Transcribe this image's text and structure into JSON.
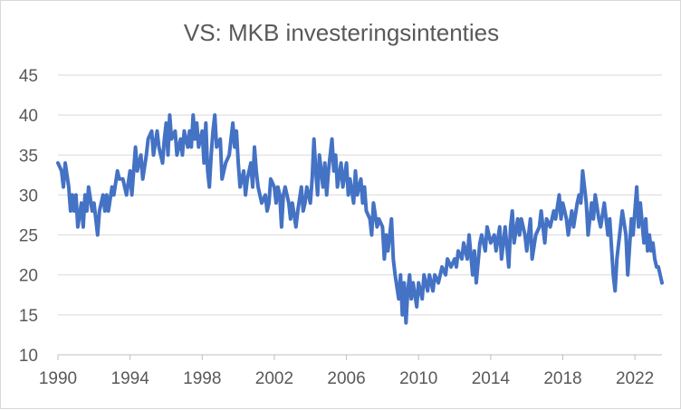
{
  "chart_data": {
    "type": "line",
    "title": "VS: MKB investeringsintenties",
    "xlabel": "",
    "ylabel": "",
    "xlim": [
      1990,
      2023.5
    ],
    "ylim": [
      10,
      45
    ],
    "x_ticks": [
      "1990",
      "1994",
      "1998",
      "2002",
      "2006",
      "2010",
      "2014",
      "2018",
      "2022"
    ],
    "y_ticks": [
      "10",
      "15",
      "20",
      "25",
      "30",
      "35",
      "40",
      "45"
    ],
    "grid": "horizontal",
    "legend": "none",
    "series": [
      {
        "color": "#4472c4",
        "points": [
          [
            1990.0,
            34
          ],
          [
            1990.2,
            33
          ],
          [
            1990.3,
            31
          ],
          [
            1990.4,
            34
          ],
          [
            1990.6,
            31
          ],
          [
            1990.7,
            28
          ],
          [
            1990.8,
            30
          ],
          [
            1990.9,
            28
          ],
          [
            1991.0,
            30
          ],
          [
            1991.1,
            26
          ],
          [
            1991.3,
            29
          ],
          [
            1991.4,
            26
          ],
          [
            1991.5,
            30
          ],
          [
            1991.6,
            28
          ],
          [
            1991.7,
            31
          ],
          [
            1991.9,
            28
          ],
          [
            1992.0,
            29
          ],
          [
            1992.1,
            27
          ],
          [
            1992.2,
            25
          ],
          [
            1992.3,
            28
          ],
          [
            1992.5,
            30
          ],
          [
            1992.6,
            28
          ],
          [
            1992.7,
            30
          ],
          [
            1992.8,
            28
          ],
          [
            1993.0,
            31
          ],
          [
            1993.1,
            30
          ],
          [
            1993.3,
            33
          ],
          [
            1993.4,
            32
          ],
          [
            1993.6,
            32
          ],
          [
            1993.8,
            30
          ],
          [
            1994.0,
            33
          ],
          [
            1994.1,
            30
          ],
          [
            1994.3,
            36
          ],
          [
            1994.4,
            33
          ],
          [
            1994.6,
            35
          ],
          [
            1994.7,
            32
          ],
          [
            1994.9,
            35
          ],
          [
            1995.0,
            37
          ],
          [
            1995.2,
            38
          ],
          [
            1995.3,
            35
          ],
          [
            1995.5,
            38
          ],
          [
            1995.6,
            36
          ],
          [
            1995.8,
            34
          ],
          [
            1995.9,
            37
          ],
          [
            1996.0,
            39
          ],
          [
            1996.1,
            35
          ],
          [
            1996.2,
            40
          ],
          [
            1996.3,
            37
          ],
          [
            1996.5,
            38
          ],
          [
            1996.6,
            35
          ],
          [
            1996.8,
            37
          ],
          [
            1996.9,
            35
          ],
          [
            1997.0,
            38
          ],
          [
            1997.2,
            36
          ],
          [
            1997.3,
            38
          ],
          [
            1997.4,
            36
          ],
          [
            1997.5,
            40
          ],
          [
            1997.6,
            37
          ],
          [
            1997.7,
            39
          ],
          [
            1997.8,
            36
          ],
          [
            1998.0,
            38
          ],
          [
            1998.1,
            34
          ],
          [
            1998.2,
            39
          ],
          [
            1998.3,
            33
          ],
          [
            1998.4,
            31
          ],
          [
            1998.5,
            35
          ],
          [
            1998.6,
            38
          ],
          [
            1998.7,
            40
          ],
          [
            1998.8,
            36
          ],
          [
            1999.0,
            37
          ],
          [
            1999.1,
            32
          ],
          [
            1999.3,
            34
          ],
          [
            1999.5,
            35
          ],
          [
            1999.7,
            39
          ],
          [
            1999.8,
            36
          ],
          [
            1999.9,
            38
          ],
          [
            2000.0,
            34
          ],
          [
            2000.1,
            31
          ],
          [
            2000.3,
            33
          ],
          [
            2000.4,
            30
          ],
          [
            2000.5,
            32
          ],
          [
            2000.7,
            34
          ],
          [
            2000.8,
            31
          ],
          [
            2000.9,
            36
          ],
          [
            2001.0,
            33
          ],
          [
            2001.1,
            31
          ],
          [
            2001.2,
            30
          ],
          [
            2001.3,
            29
          ],
          [
            2001.5,
            30
          ],
          [
            2001.6,
            28
          ],
          [
            2001.7,
            29
          ],
          [
            2001.8,
            32
          ],
          [
            2002.0,
            31
          ],
          [
            2002.1,
            29
          ],
          [
            2002.2,
            31
          ],
          [
            2002.3,
            30
          ],
          [
            2002.4,
            26
          ],
          [
            2002.5,
            30
          ],
          [
            2002.6,
            31
          ],
          [
            2002.8,
            29
          ],
          [
            2002.9,
            27
          ],
          [
            2003.0,
            29
          ],
          [
            2003.2,
            26
          ],
          [
            2003.3,
            28
          ],
          [
            2003.5,
            31
          ],
          [
            2003.6,
            28
          ],
          [
            2003.7,
            29
          ],
          [
            2003.8,
            31
          ],
          [
            2004.0,
            29
          ],
          [
            2004.1,
            32
          ],
          [
            2004.2,
            37
          ],
          [
            2004.3,
            33
          ],
          [
            2004.4,
            30
          ],
          [
            2004.5,
            35
          ],
          [
            2004.7,
            31
          ],
          [
            2004.8,
            34
          ],
          [
            2004.9,
            30
          ],
          [
            2005.0,
            33
          ],
          [
            2005.2,
            37
          ],
          [
            2005.3,
            33
          ],
          [
            2005.4,
            35
          ],
          [
            2005.5,
            31
          ],
          [
            2005.7,
            34
          ],
          [
            2005.8,
            31
          ],
          [
            2006.0,
            34
          ],
          [
            2006.1,
            30
          ],
          [
            2006.2,
            32
          ],
          [
            2006.4,
            29
          ],
          [
            2006.5,
            33
          ],
          [
            2006.6,
            30
          ],
          [
            2006.8,
            32
          ],
          [
            2006.9,
            29
          ],
          [
            2007.0,
            31
          ],
          [
            2007.1,
            28
          ],
          [
            2007.3,
            27
          ],
          [
            2007.4,
            25
          ],
          [
            2007.5,
            29
          ],
          [
            2007.7,
            26
          ],
          [
            2007.8,
            27
          ],
          [
            2008.0,
            26
          ],
          [
            2008.1,
            22
          ],
          [
            2008.2,
            25
          ],
          [
            2008.3,
            23
          ],
          [
            2008.5,
            27
          ],
          [
            2008.6,
            22
          ],
          [
            2008.7,
            20
          ],
          [
            2008.9,
            17
          ],
          [
            2009.0,
            20
          ],
          [
            2009.1,
            15
          ],
          [
            2009.2,
            19
          ],
          [
            2009.3,
            14
          ],
          [
            2009.4,
            18
          ],
          [
            2009.5,
            20
          ],
          [
            2009.6,
            17
          ],
          [
            2009.7,
            19
          ],
          [
            2009.9,
            16
          ],
          [
            2010.0,
            19
          ],
          [
            2010.2,
            17
          ],
          [
            2010.3,
            20
          ],
          [
            2010.5,
            18
          ],
          [
            2010.6,
            20
          ],
          [
            2010.8,
            18
          ],
          [
            2010.9,
            20
          ],
          [
            2011.1,
            19
          ],
          [
            2011.3,
            21
          ],
          [
            2011.5,
            20
          ],
          [
            2011.6,
            22
          ],
          [
            2011.8,
            21
          ],
          [
            2012.0,
            22
          ],
          [
            2012.1,
            21
          ],
          [
            2012.2,
            23
          ],
          [
            2012.4,
            22
          ],
          [
            2012.5,
            24
          ],
          [
            2012.7,
            22
          ],
          [
            2012.8,
            25
          ],
          [
            2013.0,
            20
          ],
          [
            2013.1,
            23
          ],
          [
            2013.2,
            19
          ],
          [
            2013.4,
            24
          ],
          [
            2013.5,
            25
          ],
          [
            2013.7,
            23
          ],
          [
            2013.8,
            26
          ],
          [
            2014.0,
            24
          ],
          [
            2014.2,
            25
          ],
          [
            2014.3,
            23
          ],
          [
            2014.5,
            26
          ],
          [
            2014.6,
            22
          ],
          [
            2014.8,
            26
          ],
          [
            2015.0,
            21
          ],
          [
            2015.1,
            26
          ],
          [
            2015.2,
            28
          ],
          [
            2015.3,
            24
          ],
          [
            2015.5,
            27
          ],
          [
            2015.6,
            25
          ],
          [
            2015.7,
            27
          ],
          [
            2015.9,
            25
          ],
          [
            2016.0,
            23
          ],
          [
            2016.2,
            27
          ],
          [
            2016.3,
            22
          ],
          [
            2016.5,
            25
          ],
          [
            2016.7,
            26
          ],
          [
            2016.8,
            28
          ],
          [
            2016.9,
            26
          ],
          [
            2017.0,
            24
          ],
          [
            2017.1,
            27
          ],
          [
            2017.3,
            26
          ],
          [
            2017.5,
            28
          ],
          [
            2017.6,
            27
          ],
          [
            2017.8,
            30
          ],
          [
            2017.9,
            27
          ],
          [
            2018.0,
            29
          ],
          [
            2018.2,
            27
          ],
          [
            2018.3,
            25
          ],
          [
            2018.5,
            28
          ],
          [
            2018.6,
            26
          ],
          [
            2018.8,
            29
          ],
          [
            2018.9,
            30
          ],
          [
            2019.0,
            29
          ],
          [
            2019.1,
            33
          ],
          [
            2019.3,
            29
          ],
          [
            2019.4,
            25
          ],
          [
            2019.6,
            29
          ],
          [
            2019.7,
            27
          ],
          [
            2019.8,
            30
          ],
          [
            2020.0,
            27
          ],
          [
            2020.1,
            26
          ],
          [
            2020.3,
            29
          ],
          [
            2020.5,
            25
          ],
          [
            2020.6,
            27
          ],
          [
            2020.8,
            20
          ],
          [
            2020.9,
            18
          ],
          [
            2021.0,
            22
          ],
          [
            2021.2,
            26
          ],
          [
            2021.3,
            28
          ],
          [
            2021.5,
            25
          ],
          [
            2021.6,
            20
          ],
          [
            2021.8,
            27
          ],
          [
            2021.9,
            25
          ],
          [
            2022.0,
            28
          ],
          [
            2022.1,
            31
          ],
          [
            2022.2,
            26
          ],
          [
            2022.3,
            29
          ],
          [
            2022.5,
            24
          ],
          [
            2022.6,
            27
          ],
          [
            2022.7,
            23
          ],
          [
            2022.8,
            25
          ],
          [
            2022.9,
            23
          ],
          [
            2023.0,
            24
          ],
          [
            2023.1,
            22
          ],
          [
            2023.2,
            21
          ],
          [
            2023.3,
            21
          ],
          [
            2023.4,
            20
          ],
          [
            2023.5,
            19
          ]
        ]
      }
    ]
  }
}
